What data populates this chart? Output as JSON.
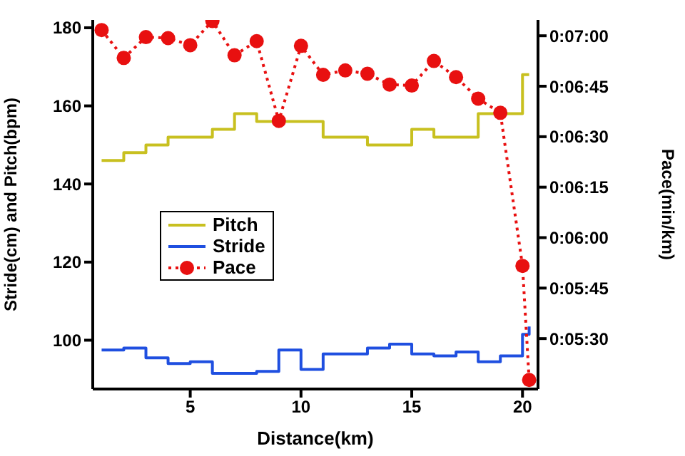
{
  "chart_data": {
    "type": "step",
    "xlabel": "Distance(km)",
    "ylabel": "Stride(cm) and Pitch(bpm)",
    "y2label": "Pace(min/km)",
    "x": [
      1,
      2,
      3,
      4,
      5,
      6,
      7,
      8,
      9,
      10,
      11,
      12,
      13,
      14,
      15,
      16,
      17,
      18,
      19,
      20,
      20.3
    ],
    "xlim": [
      0.6,
      20.7
    ],
    "xticks": [
      5,
      10,
      15,
      20
    ],
    "ylim": [
      87.5,
      182
    ],
    "yticks": [
      100,
      120,
      140,
      160,
      180
    ],
    "y2lim": [
      315,
      424.7
    ],
    "y2ticks": [
      {
        "value": 330,
        "label": "0:05:30"
      },
      {
        "value": 345,
        "label": "0:05:45"
      },
      {
        "value": 360,
        "label": "0:06:00"
      },
      {
        "value": 375,
        "label": "0:06:15"
      },
      {
        "value": 390,
        "label": "0:06:30"
      },
      {
        "value": 405,
        "label": "0:06:45"
      },
      {
        "value": 420,
        "label": "0:07:00"
      }
    ],
    "series": [
      {
        "name": "Pitch",
        "type": "step",
        "color": "#c8c020",
        "marker": "none",
        "line_style": "solid",
        "values": [
          146,
          148,
          150,
          152,
          152,
          154,
          158,
          156,
          156,
          156,
          152,
          152,
          150,
          150,
          154,
          152,
          152,
          158,
          158,
          168,
          168
        ]
      },
      {
        "name": "Stride",
        "type": "step",
        "color": "#1f4fe0",
        "marker": "none",
        "line_style": "solid",
        "values": [
          97.5,
          98,
          95.5,
          94,
          94.5,
          91.5,
          91.5,
          92,
          97.5,
          92.5,
          96.5,
          96.5,
          98,
          99,
          96.5,
          96,
          97,
          94.5,
          96,
          101.5,
          103.5
        ]
      },
      {
        "name": "Pace",
        "type": "line",
        "axis": "y2",
        "color": "#e81010",
        "marker": "circle",
        "line_style": "dotted",
        "values": [
          421.7,
          413.4,
          419.6,
          419.3,
          417.2,
          424.4,
          414.2,
          418.4,
          394.7,
          417,
          408.4,
          409.7,
          408.7,
          405.5,
          405.2,
          412.5,
          407.7,
          401.3,
          397.1,
          351.6,
          317.7
        ]
      }
    ],
    "legend": "left",
    "grid": false
  }
}
